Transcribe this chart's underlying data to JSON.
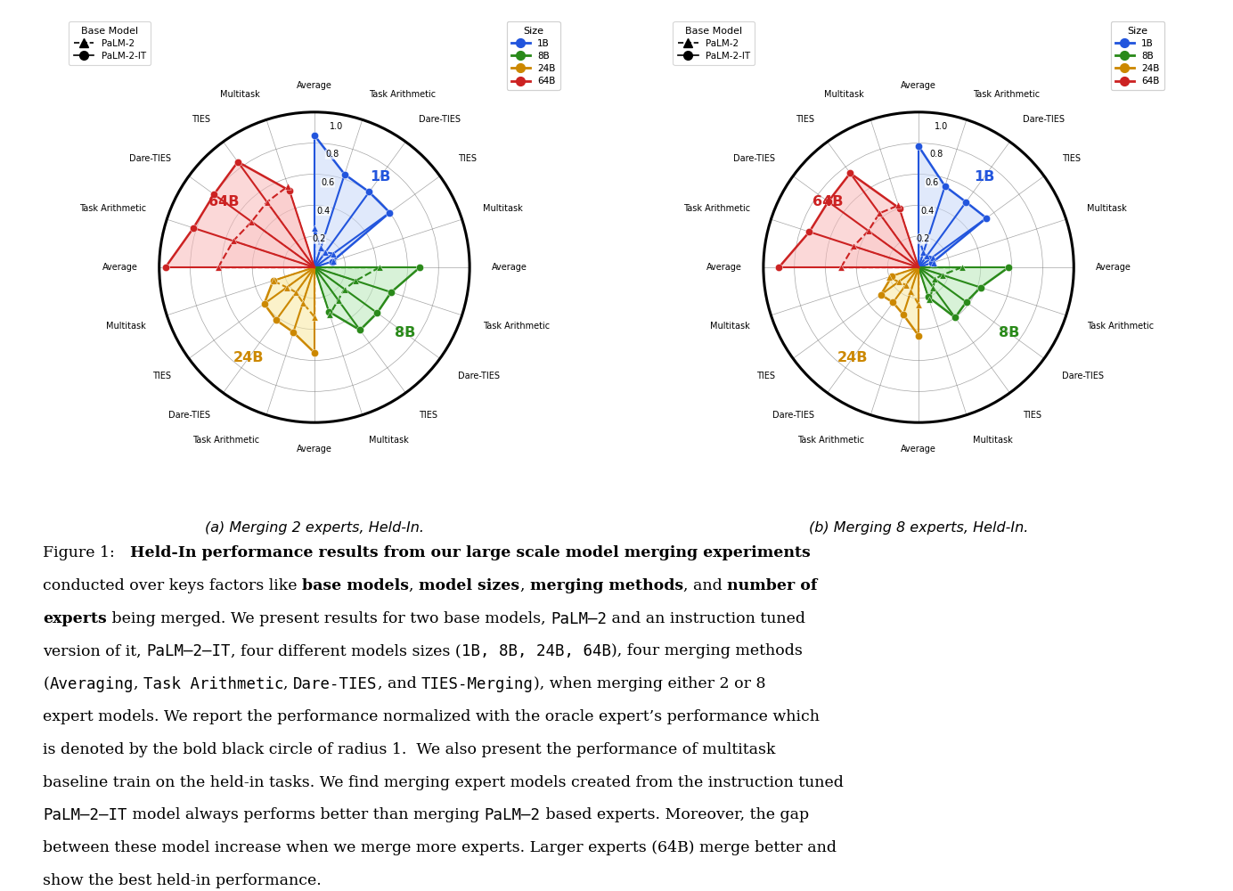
{
  "chart_a_title": "(a) Merging 2 experts, Held-In.",
  "chart_b_title": "(b) Merging 8 experts, Held-In.",
  "sizes": [
    "1B",
    "8B",
    "24B",
    "64B"
  ],
  "size_colors": {
    "1B": "#2255dd",
    "8B": "#2a8a1a",
    "24B": "#cc8800",
    "64B": "#cc2222"
  },
  "size_colors_light": {
    "1B": "#c8d8f8",
    "8B": "#b8e8b8",
    "24B": "#f8e8a0",
    "64B": "#f8b8b8"
  },
  "multitask": {
    "chart_a": {
      "1B": {
        "palm2": 0.13,
        "palm2it": 0.12
      },
      "8B": {
        "palm2": 0.32,
        "palm2it": 0.3
      },
      "24B": {
        "palm2": 0.28,
        "palm2it": 0.28
      },
      "64B": {
        "palm2": 0.55,
        "palm2it": 0.52
      }
    },
    "chart_b": {
      "1B": {
        "palm2": 0.1,
        "palm2it": 0.09
      },
      "8B": {
        "palm2": 0.22,
        "palm2it": 0.2
      },
      "24B": {
        "palm2": 0.2,
        "palm2it": 0.18
      },
      "64B": {
        "palm2": 0.42,
        "palm2it": 0.4
      }
    }
  },
  "chart_a": {
    "1B": {
      "palm2": [
        0.25,
        0.13,
        0.12,
        0.15
      ],
      "palm2it": [
        0.85,
        0.63,
        0.6,
        0.6
      ]
    },
    "8B": {
      "palm2": [
        0.42,
        0.28,
        0.24,
        0.26
      ],
      "palm2it": [
        0.68,
        0.52,
        0.5,
        0.5
      ]
    },
    "24B": {
      "palm2": [
        0.32,
        0.24,
        0.2,
        0.22
      ],
      "palm2it": [
        0.55,
        0.44,
        0.42,
        0.4
      ]
    },
    "64B": {
      "palm2": [
        0.62,
        0.55,
        0.5,
        0.52
      ],
      "palm2it": [
        0.96,
        0.82,
        0.8,
        0.84
      ]
    }
  },
  "chart_b": {
    "1B": {
      "palm2": [
        0.2,
        0.1,
        0.09,
        0.11
      ],
      "palm2it": [
        0.78,
        0.55,
        0.52,
        0.54
      ]
    },
    "8B": {
      "palm2": [
        0.28,
        0.16,
        0.13,
        0.16
      ],
      "palm2it": [
        0.58,
        0.42,
        0.38,
        0.4
      ]
    },
    "24B": {
      "palm2": [
        0.24,
        0.16,
        0.14,
        0.16
      ],
      "palm2it": [
        0.44,
        0.32,
        0.28,
        0.3
      ]
    },
    "64B": {
      "palm2": [
        0.5,
        0.44,
        0.4,
        0.43
      ],
      "palm2it": [
        0.9,
        0.74,
        0.72,
        0.75
      ]
    }
  }
}
